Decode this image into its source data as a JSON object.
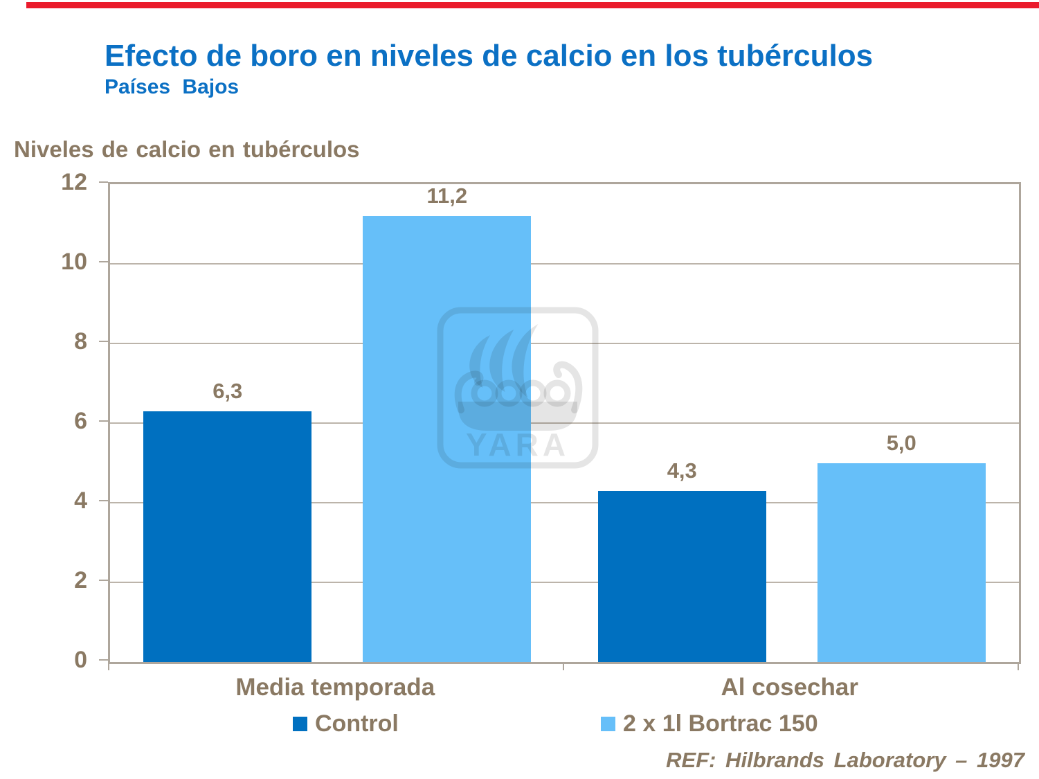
{
  "slide": {
    "title": "Efecto de boro en niveles de calcio en los tubérculos",
    "subtitle": "Países Bajos",
    "reference": "REF: Hilbrands Laboratory – 1997",
    "colors": {
      "accent_red": "#ea1b2c",
      "title_blue": "#0b70c4",
      "text_brown": "#8a7963"
    }
  },
  "chart_data": {
    "type": "bar",
    "title": "Niveles de calcio en tubérculos",
    "categories": [
      "Media temporada",
      "Al cosechar"
    ],
    "series": [
      {
        "name": "Control",
        "color": "#0070c0",
        "values": [
          6.3,
          4.3
        ],
        "labels": [
          "6,3",
          "4,3"
        ]
      },
      {
        "name": "2 x 1l Bortrac 150",
        "color": "#66bff9",
        "values": [
          11.2,
          5.0
        ],
        "labels": [
          "11,2",
          "5,0"
        ]
      }
    ],
    "ylim": [
      0,
      12
    ],
    "yticks": [
      0,
      2,
      4,
      6,
      8,
      10,
      12
    ],
    "grid": true,
    "legend_position": "bottom",
    "frame_color": "#aea69c",
    "gridline_color": "#bcb4aa"
  },
  "watermark": {
    "name": "yara-logo",
    "text": "YARA"
  }
}
